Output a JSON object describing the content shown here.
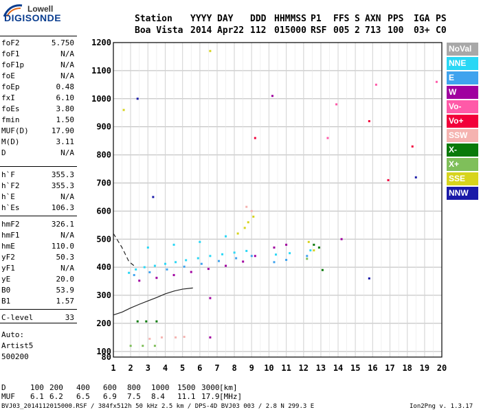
{
  "logo": {
    "line1": "Lowell",
    "line2": "DIGISONDE"
  },
  "header": {
    "labels": [
      "Station",
      "YYYY",
      "DAY",
      "DDD",
      "HHMMSS",
      "P1",
      "FFS",
      "S",
      "AXN",
      "PPS",
      "IGA",
      "PS"
    ],
    "values": [
      "Boa Vista",
      "2014",
      "Apr22",
      "112",
      "015000",
      "RSF",
      "005",
      "2",
      "713",
      "100",
      "03+",
      "C0"
    ]
  },
  "params": [
    {
      "label": "foF2",
      "value": "5.750"
    },
    {
      "label": "foF1",
      "value": "N/A"
    },
    {
      "label": "foF1p",
      "value": "N/A"
    },
    {
      "label": "foE",
      "value": "N/A"
    },
    {
      "label": "foEp",
      "value": "0.48"
    },
    {
      "label": "fxI",
      "value": "6.10"
    },
    {
      "label": "foEs",
      "value": "3.80"
    },
    {
      "label": "fmin",
      "value": "1.50"
    },
    {
      "label": "MUF(D)",
      "value": "17.90"
    },
    {
      "label": "M(D)",
      "value": "3.11"
    },
    {
      "label": "D",
      "value": "N/A"
    },
    {
      "label": "h`F",
      "value": "355.3"
    },
    {
      "label": "h`F2",
      "value": "355.3"
    },
    {
      "label": "h`E",
      "value": "N/A"
    },
    {
      "label": "h`Es",
      "value": "106.3"
    },
    {
      "label": "hmF2",
      "value": "326.1"
    },
    {
      "label": "hmF1",
      "value": "N/A"
    },
    {
      "label": "hmE",
      "value": "110.0"
    },
    {
      "label": "yF2",
      "value": "50.3"
    },
    {
      "label": "yF1",
      "value": "N/A"
    },
    {
      "label": "yE",
      "value": "20.0"
    },
    {
      "label": "B0",
      "value": "53.9"
    },
    {
      "label": "B1",
      "value": "1.57"
    },
    {
      "label": "C-level",
      "value": "33"
    }
  ],
  "auto": {
    "line1": "Auto:",
    "line2": "Artist5",
    "line3": "500200"
  },
  "legend": [
    {
      "name": "NoVal",
      "color": "#a8a8a8"
    },
    {
      "name": "NNE",
      "color": "#2ad7f5"
    },
    {
      "name": "E",
      "color": "#3fa3ee"
    },
    {
      "name": "W",
      "color": "#a0009f"
    },
    {
      "name": "Vo-",
      "color": "#ff5aa8"
    },
    {
      "name": "Vo+",
      "color": "#f2003a"
    },
    {
      "name": "SSW",
      "color": "#f5b3b0"
    },
    {
      "name": "X-",
      "color": "#0a7a0a"
    },
    {
      "name": "X+",
      "color": "#7fbf5a"
    },
    {
      "name": "SSE",
      "color": "#d7d41d"
    },
    {
      "name": "NNW",
      "color": "#1a1aa8"
    }
  ],
  "chart_data": {
    "type": "scatter",
    "xlim": [
      1,
      20
    ],
    "ylim": [
      80,
      1200
    ],
    "xticks": [
      "1",
      "2",
      "3",
      "4",
      "5",
      "6",
      "7",
      "8",
      "9",
      "10",
      "11",
      "12",
      "13",
      "14",
      "15",
      "16",
      "17",
      "18",
      "19",
      "20"
    ],
    "yticks": [
      "80",
      "100",
      "200",
      "300",
      "400",
      "500",
      "600",
      "700",
      "800",
      "900",
      "1000",
      "1100",
      "1200"
    ],
    "grid": true,
    "series": [
      {
        "name": "NNE",
        "points": [
          [
            1.9,
            380
          ],
          [
            2.3,
            392
          ],
          [
            2.8,
            400
          ],
          [
            3.4,
            405
          ],
          [
            4.0,
            412
          ],
          [
            4.6,
            418
          ],
          [
            5.2,
            425
          ],
          [
            5.9,
            432
          ],
          [
            6.6,
            440
          ],
          [
            7.3,
            446
          ],
          [
            8.0,
            452
          ],
          [
            8.7,
            458
          ],
          [
            10.4,
            445
          ],
          [
            11.2,
            450
          ],
          [
            12.4,
            460
          ],
          [
            3.0,
            470
          ],
          [
            4.5,
            480
          ],
          [
            6.0,
            490
          ],
          [
            7.5,
            510
          ]
        ]
      },
      {
        "name": "E",
        "points": [
          [
            2.2,
            372
          ],
          [
            3.1,
            382
          ],
          [
            4.1,
            392
          ],
          [
            5.1,
            402
          ],
          [
            6.1,
            412
          ],
          [
            7.1,
            422
          ],
          [
            8.1,
            432
          ],
          [
            9.0,
            440
          ],
          [
            10.3,
            418
          ],
          [
            11.0,
            426
          ],
          [
            12.2,
            440
          ]
        ]
      },
      {
        "name": "W",
        "points": [
          [
            2.5,
            352
          ],
          [
            3.5,
            362
          ],
          [
            4.5,
            372
          ],
          [
            5.5,
            383
          ],
          [
            6.5,
            394
          ],
          [
            7.5,
            405
          ],
          [
            8.5,
            420
          ],
          [
            9.2,
            440
          ],
          [
            10.3,
            470
          ],
          [
            11.0,
            480
          ],
          [
            14.2,
            500
          ],
          [
            6.6,
            290
          ],
          [
            6.6,
            150
          ],
          [
            10.2,
            1010
          ]
        ]
      },
      {
        "name": "Vo-",
        "points": [
          [
            16.2,
            1050
          ],
          [
            13.9,
            980
          ],
          [
            19.7,
            1060
          ],
          [
            13.4,
            860
          ]
        ]
      },
      {
        "name": "Vo+",
        "points": [
          [
            9.2,
            860
          ],
          [
            15.8,
            920
          ],
          [
            18.3,
            830
          ],
          [
            16.9,
            710
          ]
        ]
      },
      {
        "name": "SSW",
        "points": [
          [
            3.1,
            145
          ],
          [
            3.8,
            150
          ],
          [
            4.6,
            150
          ],
          [
            5.1,
            152
          ],
          [
            8.7,
            615
          ],
          [
            9.0,
            600
          ]
        ]
      },
      {
        "name": "X-",
        "points": [
          [
            2.4,
            207
          ],
          [
            2.9,
            207
          ],
          [
            3.5,
            207
          ],
          [
            12.6,
            480
          ],
          [
            12.9,
            470
          ],
          [
            13.1,
            390
          ]
        ]
      },
      {
        "name": "X+",
        "points": [
          [
            2.0,
            120
          ],
          [
            2.7,
            120
          ],
          [
            3.4,
            120
          ],
          [
            12.2,
            430
          ]
        ]
      },
      {
        "name": "SSE",
        "points": [
          [
            8.2,
            520
          ],
          [
            8.6,
            540
          ],
          [
            8.8,
            560
          ],
          [
            9.1,
            580
          ],
          [
            12.3,
            490
          ],
          [
            12.6,
            460
          ],
          [
            6.6,
            1170
          ],
          [
            1.6,
            960
          ]
        ]
      },
      {
        "name": "NNW",
        "points": [
          [
            3.3,
            650
          ],
          [
            2.4,
            1000
          ],
          [
            15.8,
            360
          ],
          [
            18.5,
            720
          ]
        ]
      }
    ],
    "trace": {
      "name": "profile",
      "points": [
        [
          1.0,
          230
        ],
        [
          1.5,
          240
        ],
        [
          2.0,
          255
        ],
        [
          2.5,
          268
        ],
        [
          3.0,
          280
        ],
        [
          3.5,
          292
        ],
        [
          4.0,
          305
        ],
        [
          4.5,
          315
        ],
        [
          5.0,
          322
        ],
        [
          5.6,
          326
        ]
      ]
    },
    "trace2": {
      "points": [
        [
          1.0,
          520
        ],
        [
          1.5,
          470
        ],
        [
          1.9,
          420
        ],
        [
          2.2,
          405
        ]
      ]
    }
  },
  "bottom_table": {
    "d_label": "D",
    "d_values": [
      "100",
      "200",
      "400",
      "600",
      "800",
      "1000",
      "1500",
      "3000"
    ],
    "d_unit": "[km]",
    "muf_label": "MUF",
    "muf_values": [
      "6.1",
      "6.2",
      "6.5",
      "6.9",
      "7.5",
      "8.4",
      "11.1",
      "17.9"
    ],
    "muf_unit": "[MHz]"
  },
  "footer": {
    "left": "BVJ03_2014112015000.RSF / 384fx512h 50 kHz 2.5 km / DPS-4D BVJ03 003 / 2.8 N 299.3 E",
    "right": "Ion2Png v. 1.3.17"
  }
}
